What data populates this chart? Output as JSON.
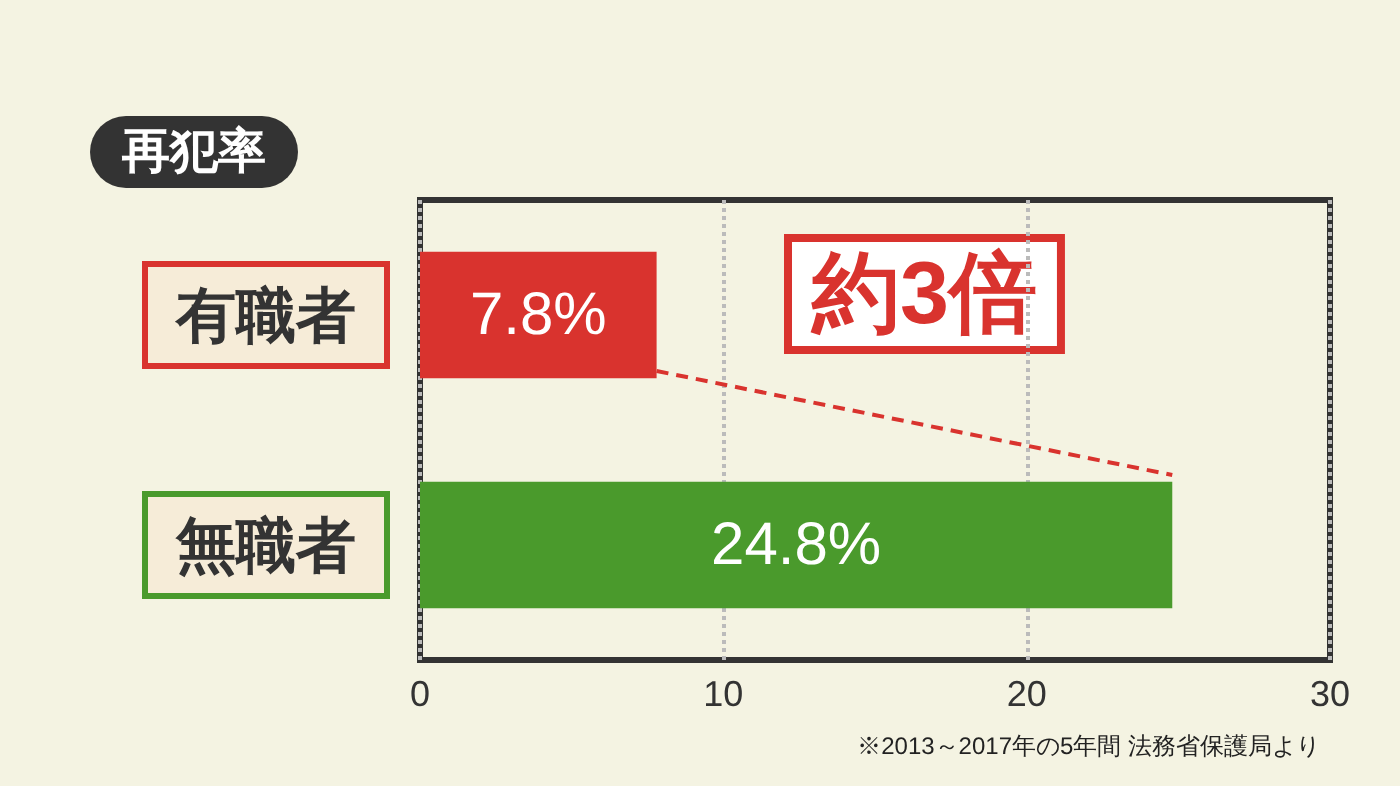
{
  "chart_data": {
    "type": "bar",
    "orientation": "horizontal",
    "title": "再犯率",
    "categories": [
      "有職者",
      "無職者"
    ],
    "values": [
      7.8,
      24.8
    ],
    "colors": [
      "#d9332e",
      "#4a9a2c"
    ],
    "value_labels": [
      "7.8%",
      "24.8%"
    ],
    "xlim": [
      0,
      30
    ],
    "xticks": [
      0,
      10,
      20,
      30
    ],
    "grid": "x",
    "annotations": [
      "約3倍",
      "※2013～2017年の5年間 法務省保護局より"
    ]
  }
}
